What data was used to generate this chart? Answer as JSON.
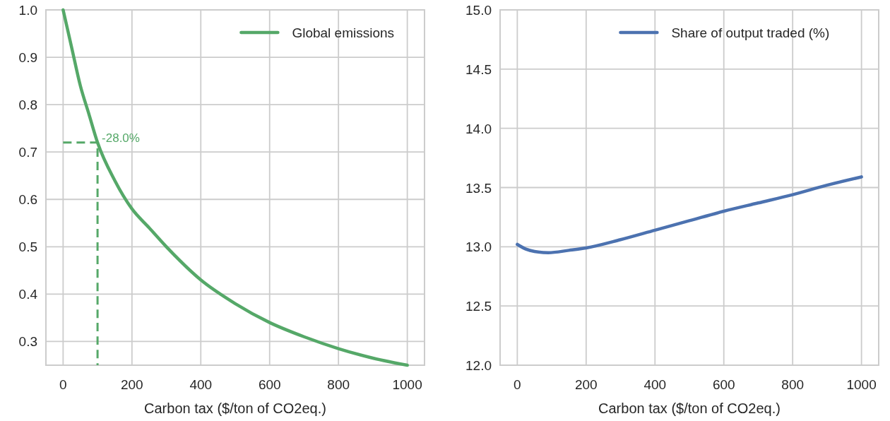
{
  "chart_data": [
    {
      "type": "line",
      "xlabel": "Carbon tax ($/ton of CO2eq.)",
      "xlim": [
        -50,
        1050
      ],
      "xticks": [
        0,
        200,
        400,
        600,
        800,
        1000
      ],
      "ylim": [
        0.25,
        1.0
      ],
      "yticks": [
        {
          "value": 0.3,
          "label": "0.3"
        },
        {
          "value": 0.4,
          "label": "0.4"
        },
        {
          "value": 0.5,
          "label": "0.5"
        },
        {
          "value": 0.6,
          "label": "0.6"
        },
        {
          "value": 0.7,
          "label": "0.7"
        },
        {
          "value": 0.8,
          "label": "0.8"
        },
        {
          "value": 0.9,
          "label": "0.9"
        },
        {
          "value": 1.0,
          "label": "1.0"
        }
      ],
      "grid": true,
      "legend": "top right",
      "series": [
        {
          "name": "Global emissions",
          "color": "#55a868",
          "x": [
            0,
            25,
            50,
            75,
            100,
            150,
            200,
            250,
            300,
            400,
            500,
            600,
            700,
            800,
            900,
            1000
          ],
          "values": [
            1.0,
            0.92,
            0.84,
            0.78,
            0.72,
            0.64,
            0.58,
            0.54,
            0.5,
            0.43,
            0.38,
            0.34,
            0.31,
            0.285,
            0.265,
            0.25
          ]
        },
        {
          "color": "#55a868",
          "line_style": "dashed",
          "x": [
            0,
            100,
            100
          ],
          "values": [
            0.72,
            0.72,
            0.25
          ]
        }
      ],
      "annotations": [
        {
          "text": "-28.0%",
          "x": 100,
          "y": 0.72
        }
      ]
    },
    {
      "type": "line",
      "xlabel": "Carbon tax ($/ton of CO2eq.)",
      "xlim": [
        -50,
        1050
      ],
      "xticks": [
        0,
        200,
        400,
        600,
        800,
        1000
      ],
      "ylim": [
        12,
        15
      ],
      "yticks": [
        {
          "value": 12,
          "label": "12.0"
        },
        {
          "value": 12.5,
          "label": "12.5"
        },
        {
          "value": 13,
          "label": "13.0"
        },
        {
          "value": 13.5,
          "label": "13.5"
        },
        {
          "value": 14,
          "label": "14.0"
        },
        {
          "value": 14.5,
          "label": "14.5"
        },
        {
          "value": 15,
          "label": "15.0"
        }
      ],
      "grid": true,
      "legend": "top right",
      "series": [
        {
          "name": "Share of output traded (%)",
          "color": "#4c72b0",
          "x": [
            0,
            25,
            50,
            90,
            150,
            200,
            300,
            400,
            500,
            600,
            700,
            800,
            900,
            1000
          ],
          "values": [
            13.02,
            12.98,
            12.96,
            12.95,
            12.97,
            12.99,
            13.06,
            13.14,
            13.22,
            13.3,
            13.37,
            13.44,
            13.52,
            13.59
          ]
        }
      ]
    }
  ]
}
